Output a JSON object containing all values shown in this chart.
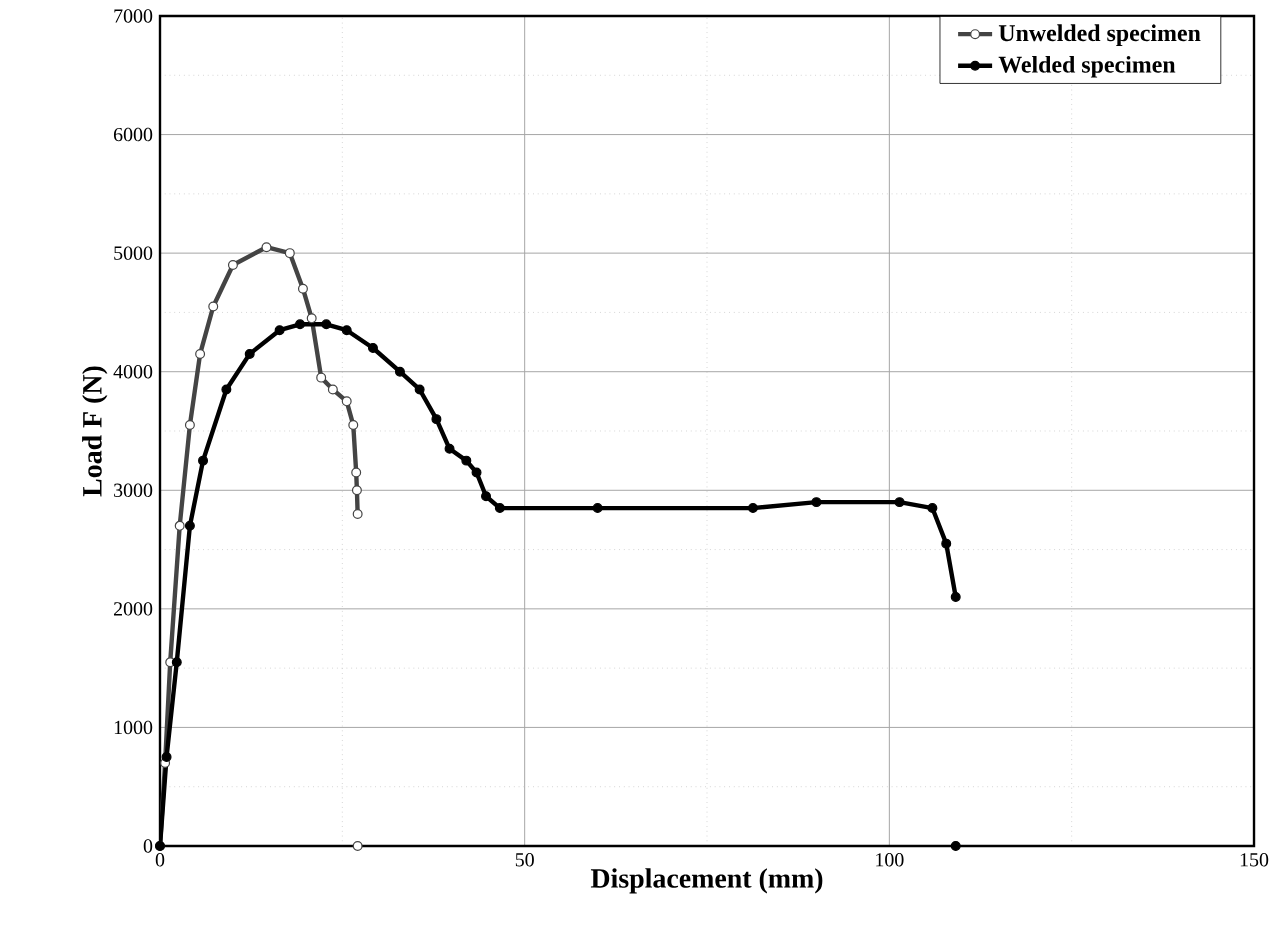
{
  "chart_data": {
    "type": "line",
    "xlabel": "Displacement (mm)",
    "ylabel": "Load F (N)",
    "xlim": [
      0,
      150
    ],
    "ylim": [
      0,
      7000
    ],
    "xticks": [
      0,
      50,
      100,
      150
    ],
    "yticks": [
      0,
      1000,
      2000,
      3000,
      4000,
      5000,
      6000,
      7000
    ],
    "grid": true,
    "legend": "top right",
    "marker": "circle",
    "line_style": "solid",
    "series": [
      {
        "name": "Unwelded specimen",
        "color": "#444444",
        "x": [
          0,
          0.7,
          1.4,
          2.7,
          4.1,
          5.5,
          7.3,
          10,
          14.6,
          17.8,
          19.6,
          20.8,
          22.1,
          23.7,
          25.6,
          26.5,
          26.9,
          27,
          27.1,
          null,
          27.1
        ],
        "values": [
          0,
          700,
          1550,
          2700,
          3550,
          4150,
          4550,
          4900,
          5050,
          5000,
          4700,
          4450,
          3950,
          3850,
          3750,
          3550,
          3150,
          3000,
          2800,
          null,
          0
        ]
      },
      {
        "name": "Welded specimen",
        "color": "#000000",
        "x": [
          0,
          0.9,
          2.3,
          4.1,
          5.9,
          9.1,
          12.3,
          16.4,
          19.2,
          22.8,
          25.6,
          29.2,
          32.9,
          35.6,
          37.9,
          39.7,
          42,
          43.4,
          44.7,
          46.6,
          60,
          81.3,
          90,
          101.4,
          105.9,
          107.8,
          109.1,
          null,
          109.1
        ],
        "values": [
          0,
          750,
          1550,
          2700,
          3250,
          3850,
          4150,
          4350,
          4400,
          4400,
          4350,
          4200,
          4000,
          3850,
          3600,
          3350,
          3250,
          3150,
          2950,
          2850,
          2850,
          2850,
          2900,
          2900,
          2850,
          2550,
          2100,
          null,
          0
        ]
      }
    ]
  }
}
